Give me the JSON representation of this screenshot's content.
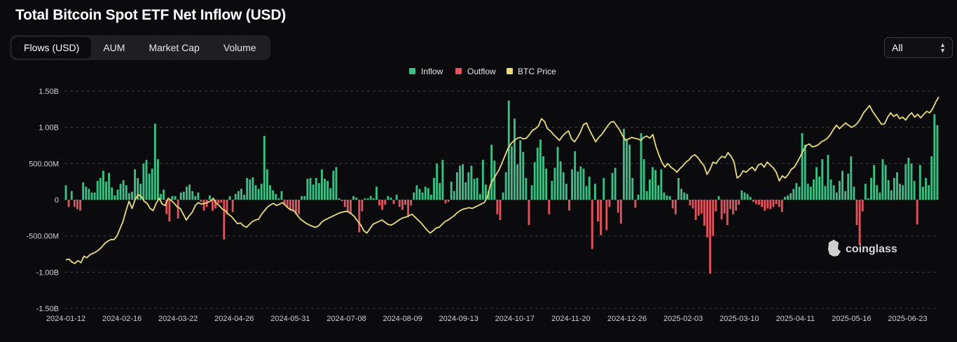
{
  "title": "Total Bitcoin Spot ETF Net Inflow (USD)",
  "tabs": [
    {
      "label": "Flows (USD)",
      "active": true
    },
    {
      "label": "AUM",
      "active": false
    },
    {
      "label": "Market Cap",
      "active": false
    },
    {
      "label": "Volume",
      "active": false
    }
  ],
  "range_select": {
    "value": "All"
  },
  "watermark": "coinglass",
  "colors": {
    "inflow": "#3bbf85",
    "outflow": "#e0535d",
    "price": "#e9dd7a",
    "grid": "#3a3a40"
  },
  "chart_data": {
    "type": "bar",
    "title": "Total Bitcoin Spot ETF Net Inflow (USD)",
    "legend": {
      "position": "top-center",
      "entries": [
        "Inflow",
        "Outflow",
        "BTC Price"
      ]
    },
    "grid": true,
    "ylim": [
      -1.5,
      1.5
    ],
    "y_unit": "billion USD",
    "y_ticks": [
      1.5,
      1.0,
      0.5,
      0,
      -0.5,
      -1.0,
      -1.5
    ],
    "y_tick_labels": [
      "1.50B",
      "1.00B",
      "500.00M",
      "0",
      "-500.00M",
      "-1.00B",
      "-1.50B"
    ],
    "x_tick_labels": [
      "2024-01-12",
      "2024-02-16",
      "2024-03-22",
      "2024-04-26",
      "2024-05-31",
      "2024-07-08",
      "2024-08-09",
      "2024-09-13",
      "2024-10-17",
      "2024-11-20",
      "2024-12-26",
      "2025-02-03",
      "2025-03-10",
      "2025-04-11",
      "2025-05-16",
      "2025-06-23"
    ],
    "series": [
      {
        "name": "Inflow / Outflow",
        "kind": "bar",
        "period_start": "2024-01-11",
        "period_end": "2025-07-15",
        "values": [
          0.2,
          -0.1,
          0.12,
          -0.1,
          -0.13,
          -0.15,
          0.24,
          0.18,
          0.15,
          0.1,
          0.1,
          0.26,
          0.3,
          0.4,
          0.25,
          0.37,
          0.17,
          0.06,
          0.14,
          0.22,
          0.27,
          0.2,
          0.09,
          0.11,
          0.42,
          0.3,
          0.22,
          0.5,
          0.55,
          0.36,
          0.43,
          1.05,
          0.56,
          0.08,
          0.14,
          -0.2,
          -0.3,
          0.05,
          0.05,
          -0.26,
          0.1,
          0.11,
          0.18,
          0.21,
          0.12,
          0.05,
          0.1,
          -0.03,
          -0.15,
          -0.1,
          0.06,
          -0.15,
          -0.12,
          -0.05,
          -0.04,
          -0.55,
          -0.2,
          0.05,
          -0.17,
          0.08,
          0.12,
          0.15,
          0.07,
          0.3,
          0.28,
          0.31,
          0.2,
          0.15,
          0.22,
          0.88,
          0.42,
          0.2,
          0.13,
          0.08,
          0.02,
          0.12,
          -0.07,
          -0.1,
          -0.15,
          -0.16,
          -0.2,
          -0.2,
          0.05,
          0.05,
          0.29,
          0.3,
          0.21,
          0.3,
          0.23,
          0.42,
          0.29,
          0.26,
          0.16,
          0.4,
          0.45,
          0.02,
          -0.02,
          -0.1,
          -0.17,
          -0.2,
          0.05,
          0.03,
          -0.45,
          -0.16,
          0.02,
          0.02,
          0.05,
          0.02,
          0.18,
          -0.08,
          -0.14,
          -0.07,
          0.05,
          0.03,
          -0.06,
          0.07,
          -0.1,
          -0.14,
          -0.07,
          -0.24,
          -0.08,
          0.1,
          0.2,
          0.15,
          0.1,
          0.18,
          0.16,
          0.07,
          0.3,
          0.5,
          0.23,
          0.55,
          -0.05,
          -0.03,
          0.25,
          0.12,
          0.38,
          0.47,
          0.49,
          0.24,
          0.38,
          0.47,
          0.29,
          0.3,
          0.08,
          0.55,
          0.21,
          0.12,
          0.76,
          0.54,
          -0.2,
          -0.28,
          0.1,
          0.38,
          1.37,
          0.74,
          1.12,
          0.49,
          0.82,
          0.66,
          0.3,
          -0.35,
          0.2,
          0.52,
          0.72,
          0.83,
          0.6,
          0.43,
          -0.2,
          0.26,
          0.44,
          0.73,
          0.53,
          0.38,
          0.22,
          -0.15,
          0.42,
          0.67,
          0.39,
          0.46,
          0.43,
          0.19,
          0.32,
          -0.68,
          0.22,
          -0.3,
          -0.49,
          0.3,
          -0.42,
          -0.1,
          0.37,
          0.44,
          -0.18,
          -0.33,
          0.98,
          0.84,
          0.76,
          0.3,
          -0.11,
          0.07,
          0.92,
          0.56,
          0.12,
          0.28,
          0.45,
          0.41,
          0.2,
          0.42,
          0.1,
          0.06,
          0.05,
          -0.12,
          -0.2,
          0.3,
          0.15,
          0.1,
          0.08,
          -0.08,
          -0.12,
          -0.28,
          -0.22,
          -0.19,
          -0.36,
          -0.52,
          -1.02,
          -0.5,
          -0.16,
          0.05,
          -0.27,
          -0.19,
          -0.35,
          -0.13,
          -0.2,
          -0.15,
          -0.07,
          0.13,
          0.1,
          0.08,
          0.04,
          -0.03,
          -0.06,
          -0.07,
          -0.1,
          -0.15,
          -0.12,
          -0.13,
          -0.1,
          -0.06,
          -0.1,
          -0.17,
          0.04,
          0.06,
          0.09,
          0.15,
          0.23,
          0.18,
          0.92,
          0.76,
          0.22,
          0.18,
          0.28,
          0.45,
          0.32,
          0.56,
          0.19,
          0.62,
          0.28,
          0.2,
          0.1,
          0.26,
          0.4,
          0.12,
          0.36,
          0.6,
          0.18,
          -0.35,
          -0.62,
          -0.16,
          0.22,
          0.02,
          0.3,
          0.48,
          0.2,
          0.1,
          0.56,
          0.48,
          0.27,
          0.13,
          0.3,
          0.38,
          0.22,
          0.2,
          0.49,
          0.58,
          0.5,
          0.26,
          -0.34,
          0.48,
          0.18,
          0.3,
          0.2,
          0.6,
          1.18,
          1.03
        ]
      },
      {
        "name": "BTC Price",
        "kind": "line",
        "values": [
          -0.83,
          -0.82,
          -0.86,
          -0.88,
          -0.84,
          -0.87,
          -0.78,
          -0.8,
          -0.76,
          -0.74,
          -0.72,
          -0.69,
          -0.65,
          -0.6,
          -0.57,
          -0.55,
          -0.55,
          -0.5,
          -0.4,
          -0.3,
          -0.15,
          -0.02,
          -0.12,
          0.0,
          0.07,
          0.05,
          -0.02,
          -0.05,
          -0.12,
          -0.15,
          -0.05,
          0.02,
          -0.06,
          -0.08,
          0.02,
          -0.01,
          -0.05,
          -0.1,
          -0.12,
          -0.2,
          -0.28,
          -0.22,
          -0.17,
          -0.08,
          -0.04,
          -0.06,
          -0.05,
          -0.04,
          -0.02,
          0.02,
          -0.05,
          -0.08,
          -0.13,
          -0.15,
          -0.2,
          -0.23,
          -0.28,
          -0.33,
          -0.32,
          -0.36,
          -0.38,
          -0.34,
          -0.3,
          -0.28,
          -0.27,
          -0.2,
          -0.15,
          -0.1,
          -0.07,
          -0.05,
          -0.08,
          -0.06,
          -0.04,
          -0.08,
          -0.12,
          -0.14,
          -0.16,
          -0.22,
          -0.27,
          -0.3,
          -0.33,
          -0.35,
          -0.37,
          -0.38,
          -0.36,
          -0.31,
          -0.28,
          -0.26,
          -0.24,
          -0.22,
          -0.2,
          -0.18,
          -0.17,
          -0.16,
          -0.17,
          -0.2,
          -0.24,
          -0.3,
          -0.35,
          -0.43,
          -0.46,
          -0.4,
          -0.34,
          -0.32,
          -0.3,
          -0.28,
          -0.31,
          -0.34,
          -0.35,
          -0.33,
          -0.3,
          -0.27,
          -0.25,
          -0.24,
          -0.22,
          -0.2,
          -0.24,
          -0.28,
          -0.32,
          -0.37,
          -0.42,
          -0.46,
          -0.43,
          -0.39,
          -0.38,
          -0.34,
          -0.3,
          -0.28,
          -0.25,
          -0.22,
          -0.18,
          -0.15,
          -0.13,
          -0.12,
          -0.11,
          -0.12,
          -0.1,
          -0.08,
          -0.06,
          -0.04,
          0.03,
          0.2,
          0.28,
          0.35,
          0.42,
          0.52,
          0.62,
          0.72,
          0.78,
          0.82,
          0.85,
          0.86,
          0.84,
          0.85,
          0.9,
          0.96,
          0.98,
          1.02,
          1.12,
          1.08,
          0.98,
          0.95,
          0.9,
          0.86,
          0.82,
          0.88,
          0.92,
          0.95,
          0.84,
          0.8,
          0.86,
          0.94,
          1.04,
          1.06,
          0.96,
          0.88,
          0.8,
          0.86,
          0.9,
          0.96,
          1.02,
          1.07,
          1.08,
          1.02,
          0.96,
          0.88,
          0.82,
          0.84,
          0.86,
          0.85,
          0.84,
          0.82,
          0.86,
          0.88,
          0.85,
          0.9,
          0.74,
          0.62,
          0.52,
          0.45,
          0.5,
          0.45,
          0.42,
          0.38,
          0.43,
          0.47,
          0.52,
          0.55,
          0.6,
          0.62,
          0.58,
          0.52,
          0.47,
          0.35,
          0.42,
          0.52,
          0.5,
          0.56,
          0.6,
          0.58,
          0.65,
          0.6,
          0.52,
          0.3,
          0.33,
          0.4,
          0.38,
          0.42,
          0.45,
          0.4,
          0.48,
          0.5,
          0.45,
          0.52,
          0.48,
          0.44,
          0.38,
          0.26,
          0.33,
          0.3,
          0.35,
          0.42,
          0.45,
          0.52,
          0.6,
          0.68,
          0.75,
          0.77,
          0.73,
          0.74,
          0.76,
          0.8,
          0.82,
          0.85,
          0.9,
          0.97,
          1.03,
          0.98,
          1.02,
          1.06,
          1.03,
          1.0,
          1.02,
          1.06,
          1.12,
          1.2,
          1.25,
          1.3,
          1.22,
          1.16,
          1.1,
          1.04,
          1.05,
          1.14,
          1.2,
          1.15,
          1.18,
          1.12,
          1.14,
          1.1,
          1.16,
          1.2,
          1.14,
          1.18,
          1.13,
          1.18,
          1.22,
          1.2,
          1.26,
          1.35,
          1.42
        ]
      }
    ]
  }
}
